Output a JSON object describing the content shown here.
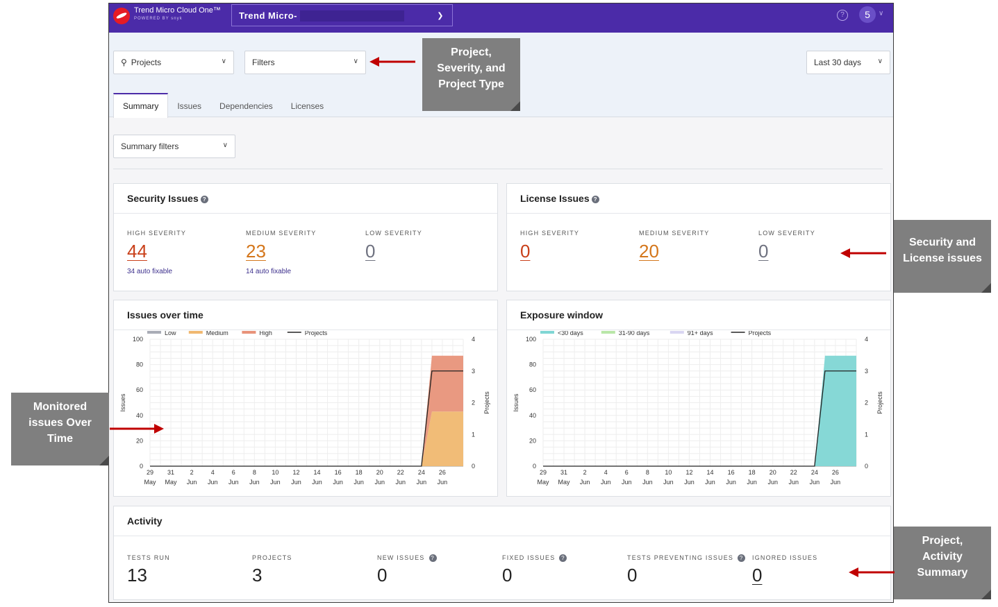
{
  "header": {
    "brand_title": "Trend Micro Cloud One™",
    "brand_sub": "POWERED BY snyk",
    "org_name": "Trend Micro-",
    "help_glyph": "?",
    "avatar_label": "5"
  },
  "filters": {
    "projects_label": "Projects",
    "filters_label": "Filters",
    "date_range": "Last 30 days"
  },
  "tabs": [
    "Summary",
    "Issues",
    "Dependencies",
    "Licenses"
  ],
  "summary_filters_label": "Summary filters",
  "security": {
    "title": "Security Issues",
    "high_label": "HIGH SEVERITY",
    "high_value": "44",
    "high_auto": "34 auto fixable",
    "medium_label": "MEDIUM SEVERITY",
    "medium_value": "23",
    "medium_auto": "14 auto fixable",
    "low_label": "LOW SEVERITY",
    "low_value": "0"
  },
  "license": {
    "title": "License Issues",
    "high_label": "HIGH SEVERITY",
    "high_value": "0",
    "medium_label": "MEDIUM SEVERITY",
    "medium_value": "20",
    "low_label": "LOW SEVERITY",
    "low_value": "0"
  },
  "issues_over_time": {
    "title": "Issues over time"
  },
  "exposure_window": {
    "title": "Exposure window"
  },
  "activity": {
    "title": "Activity",
    "items": [
      {
        "label": "TESTS RUN",
        "value": "13"
      },
      {
        "label": "PROJECTS",
        "value": "3"
      },
      {
        "label": "NEW ISSUES",
        "value": "0"
      },
      {
        "label": "FIXED ISSUES",
        "value": "0"
      },
      {
        "label": "TESTS PREVENTING ISSUES",
        "value": "0"
      },
      {
        "label": "IGNORED ISSUES",
        "value": "0"
      }
    ]
  },
  "annotations": {
    "filters_note": [
      "Project,",
      "Severity, and",
      "Project Type"
    ],
    "security_note": [
      "Security and",
      "License issues"
    ],
    "monitored_note": [
      "Monitored",
      "issues Over",
      "Time"
    ],
    "activity_note": [
      "Project,",
      "Activity",
      "Summary"
    ]
  },
  "colors": {
    "header": "#4b2ba8",
    "high": "#c9401a",
    "medium": "#d4761b",
    "low": "#6f7280",
    "arrow": "#c00000"
  },
  "chart_data": [
    {
      "type": "area",
      "title": "Issues over time",
      "xlabel": "",
      "ylabel": "Issues",
      "y2label": "Projects",
      "ylim": [
        0,
        100
      ],
      "y2lim": [
        0,
        4
      ],
      "yticks": [
        0,
        20,
        40,
        60,
        80,
        100
      ],
      "y2ticks": [
        0,
        1,
        2,
        3,
        4
      ],
      "x_days": [
        "29",
        "31",
        "2",
        "4",
        "6",
        "8",
        "10",
        "12",
        "14",
        "16",
        "18",
        "20",
        "22",
        "24",
        "26"
      ],
      "x_months": [
        "May",
        "May",
        "Jun",
        "Jun",
        "Jun",
        "Jun",
        "Jun",
        "Jun",
        "Jun",
        "Jun",
        "Jun",
        "Jun",
        "Jun",
        "Jun",
        "Jun"
      ],
      "series": [
        {
          "name": "Low",
          "color": "#a9acb6",
          "values": [
            0,
            0,
            0,
            0,
            0,
            0,
            0,
            0,
            0,
            0,
            0,
            0,
            0,
            0,
            0,
            0
          ]
        },
        {
          "name": "Medium",
          "color": "#f0b870",
          "values": [
            0,
            0,
            0,
            0,
            0,
            0,
            0,
            0,
            0,
            0,
            0,
            0,
            0,
            0,
            43,
            43
          ]
        },
        {
          "name": "High",
          "color": "#e8937a",
          "values": [
            0,
            0,
            0,
            0,
            0,
            0,
            0,
            0,
            0,
            0,
            0,
            0,
            0,
            0,
            44,
            44
          ]
        },
        {
          "name": "Projects",
          "color": "#222222",
          "axis": "right",
          "values": [
            0,
            0,
            0,
            0,
            0,
            0,
            0,
            0,
            0,
            0,
            0,
            0,
            0,
            0,
            3,
            3
          ]
        }
      ],
      "x_index": [
        0,
        1,
        2,
        3,
        4,
        5,
        6,
        7,
        8,
        9,
        10,
        11,
        12,
        13,
        13.5,
        15
      ]
    },
    {
      "type": "area",
      "title": "Exposure window",
      "xlabel": "",
      "ylabel": "Issues",
      "y2label": "Projects",
      "ylim": [
        0,
        100
      ],
      "y2lim": [
        0,
        4
      ],
      "yticks": [
        0,
        20,
        40,
        60,
        80,
        100
      ],
      "y2ticks": [
        0,
        1,
        2,
        3,
        4
      ],
      "x_days": [
        "29",
        "31",
        "2",
        "4",
        "6",
        "8",
        "10",
        "12",
        "14",
        "16",
        "18",
        "20",
        "22",
        "24",
        "26"
      ],
      "x_months": [
        "May",
        "May",
        "Jun",
        "Jun",
        "Jun",
        "Jun",
        "Jun",
        "Jun",
        "Jun",
        "Jun",
        "Jun",
        "Jun",
        "Jun",
        "Jun",
        "Jun"
      ],
      "series": [
        {
          "name": "<30 days",
          "color": "#7fd6d4",
          "values": [
            0,
            0,
            0,
            0,
            0,
            0,
            0,
            0,
            0,
            0,
            0,
            0,
            0,
            0,
            87,
            87
          ]
        },
        {
          "name": "31-90 days",
          "color": "#b9e6a8",
          "values": [
            0,
            0,
            0,
            0,
            0,
            0,
            0,
            0,
            0,
            0,
            0,
            0,
            0,
            0,
            0,
            0
          ]
        },
        {
          "name": "91+ days",
          "color": "#d9d6f2",
          "values": [
            0,
            0,
            0,
            0,
            0,
            0,
            0,
            0,
            0,
            0,
            0,
            0,
            0,
            0,
            0,
            0
          ]
        },
        {
          "name": "Projects",
          "color": "#222222",
          "axis": "right",
          "values": [
            0,
            0,
            0,
            0,
            0,
            0,
            0,
            0,
            0,
            0,
            0,
            0,
            0,
            0,
            3,
            3
          ]
        }
      ],
      "x_index": [
        0,
        1,
        2,
        3,
        4,
        5,
        6,
        7,
        8,
        9,
        10,
        11,
        12,
        13,
        13.5,
        15
      ]
    }
  ]
}
